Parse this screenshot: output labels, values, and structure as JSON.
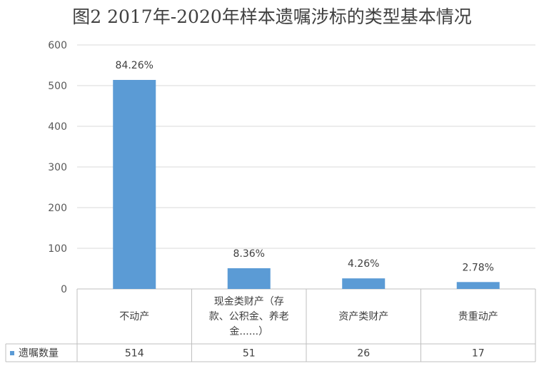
{
  "chart_data": {
    "type": "bar",
    "title": "图2 2017年-2020年样本遗嘱涉标的类型基本情况",
    "categories": [
      [
        "不动产"
      ],
      [
        "现金类财产（存",
        "款、公积金、养老",
        "金......）"
      ],
      [
        "资产类财产"
      ],
      [
        "贵重动产"
      ]
    ],
    "series": [
      {
        "name": "遗嘱数量",
        "values": [
          514,
          51,
          26,
          17
        ],
        "data_labels": [
          "84.26%",
          "8.36%",
          "4.26%",
          "2.78%"
        ],
        "color": "#5b9bd5"
      }
    ],
    "y_ticks": [
      "0",
      "100",
      "200",
      "300",
      "400",
      "500",
      "600"
    ],
    "ylim": [
      0,
      600
    ],
    "grid": true,
    "legend": "data-table-left"
  }
}
